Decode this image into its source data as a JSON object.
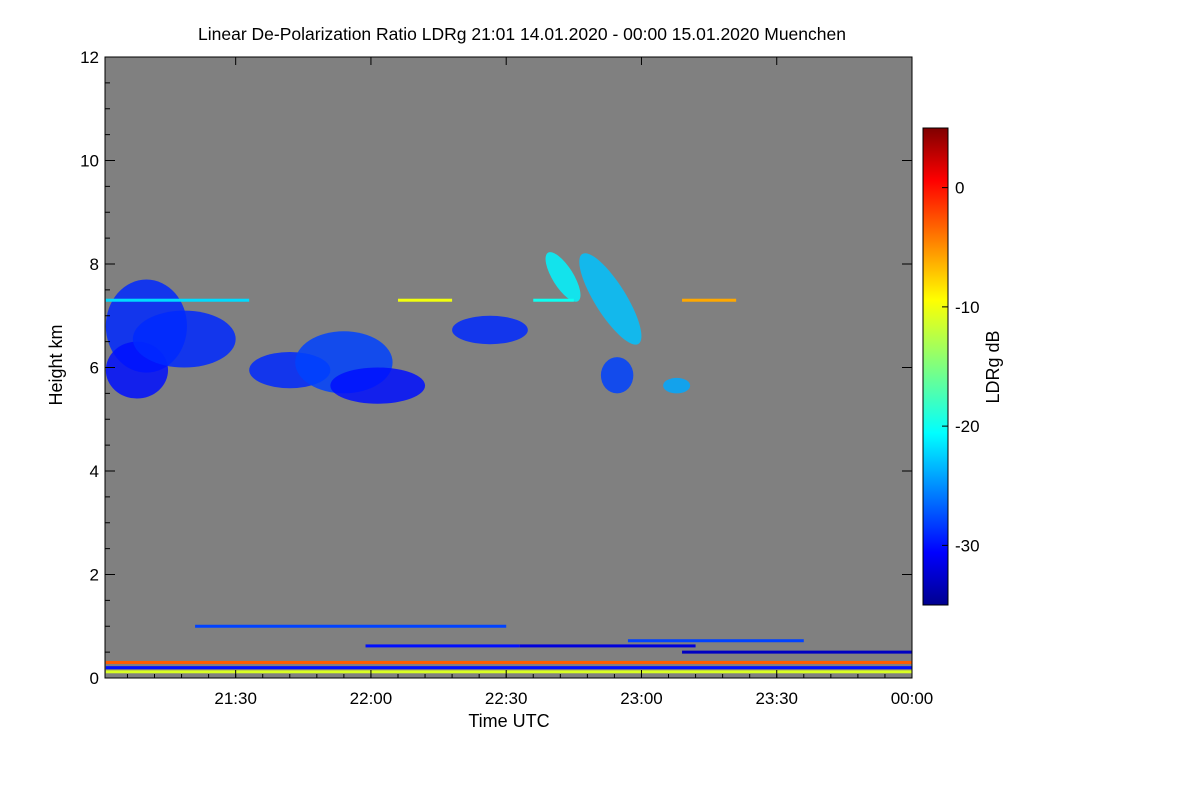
{
  "chart_data": {
    "type": "heatmap",
    "title": "Linear De-Polarization Ratio LDRg   21:01 14.01.2020 - 00:00 15.01.2020 Muenchen",
    "xlabel": "Time UTC",
    "ylabel": "Height km",
    "colorbar_label": "LDRg dB",
    "background_color": "#808080",
    "xlim_hours": [
      21.017,
      24.0
    ],
    "ylim_km": [
      0,
      12
    ],
    "x_ticks": [
      {
        "label": "21:30",
        "hours": 21.5
      },
      {
        "label": "22:00",
        "hours": 22.0
      },
      {
        "label": "22:30",
        "hours": 22.5
      },
      {
        "label": "23:00",
        "hours": 23.0
      },
      {
        "label": "23:30",
        "hours": 23.5
      },
      {
        "label": "00:00",
        "hours": 24.0
      }
    ],
    "y_ticks": [
      {
        "label": "0",
        "value": 0
      },
      {
        "label": "2",
        "value": 2
      },
      {
        "label": "4",
        "value": 4
      },
      {
        "label": "6",
        "value": 6
      },
      {
        "label": "8",
        "value": 8
      },
      {
        "label": "10",
        "value": 10
      },
      {
        "label": "12",
        "value": 12
      }
    ],
    "colorbar_range_db": [
      -35,
      5
    ],
    "colorbar_ticks": [
      {
        "label": "0",
        "value": 0
      },
      {
        "label": "-10",
        "value": -10
      },
      {
        "label": "-20",
        "value": -20
      },
      {
        "label": "-30",
        "value": -30
      }
    ],
    "colormap_stops": [
      {
        "v": 0.0,
        "c": "#00008f"
      },
      {
        "v": 0.11,
        "c": "#0000ff"
      },
      {
        "v": 0.36,
        "c": "#00ffff"
      },
      {
        "v": 0.5,
        "c": "#7fff7f"
      },
      {
        "v": 0.64,
        "c": "#ffff00"
      },
      {
        "v": 0.89,
        "c": "#ff0000"
      },
      {
        "v": 1.0,
        "c": "#800000"
      }
    ],
    "cloud_features": [
      {
        "name": "cirrus-a1",
        "t0": 21.02,
        "t1": 21.32,
        "h_base": 5.9,
        "h_top": 7.7,
        "ldr": -29
      },
      {
        "name": "cirrus-a2",
        "t0": 21.02,
        "t1": 21.25,
        "h_base": 5.4,
        "h_top": 6.5,
        "ldr": -30
      },
      {
        "name": "cirrus-a3",
        "t0": 21.12,
        "t1": 21.5,
        "h_base": 6.0,
        "h_top": 7.1,
        "ldr": -29
      },
      {
        "name": "cirrus-b1",
        "t0": 21.55,
        "t1": 21.85,
        "h_base": 5.6,
        "h_top": 6.3,
        "ldr": -29
      },
      {
        "name": "cirrus-b2",
        "t0": 21.72,
        "t1": 22.08,
        "h_base": 5.5,
        "h_top": 6.7,
        "ldr": -28
      },
      {
        "name": "cirrus-b3",
        "t0": 21.85,
        "t1": 22.2,
        "h_base": 5.3,
        "h_top": 6.0,
        "ldr": -30
      },
      {
        "name": "cirrus-c1",
        "t0": 22.3,
        "t1": 22.58,
        "h_base": 6.45,
        "h_top": 7.0,
        "ldr": -29
      },
      {
        "name": "fallstreak-d1",
        "t0": 22.72,
        "t1": 23.05,
        "h_base": 6.3,
        "h_top": 8.35,
        "ldr": -23
      },
      {
        "name": "fallstreak-d2",
        "t0": 22.6,
        "t1": 22.82,
        "h_base": 7.2,
        "h_top": 8.3,
        "ldr": -21
      },
      {
        "name": "cirrus-e1",
        "t0": 22.85,
        "t1": 22.97,
        "h_base": 5.5,
        "h_top": 6.2,
        "ldr": -28
      },
      {
        "name": "cirrus-e2",
        "t0": 23.08,
        "t1": 23.18,
        "h_base": 5.5,
        "h_top": 5.8,
        "ldr": -24
      }
    ],
    "layer_lines": [
      {
        "name": "layer-7.3km-a",
        "t0": 21.02,
        "t1": 21.55,
        "h": 7.3,
        "ldr": -22
      },
      {
        "name": "layer-7.3km-b",
        "t0": 22.1,
        "t1": 22.3,
        "h": 7.3,
        "ldr": -10
      },
      {
        "name": "layer-7.3km-c",
        "t0": 22.6,
        "t1": 22.75,
        "h": 7.3,
        "ldr": -20
      },
      {
        "name": "layer-7.3km-d",
        "t0": 23.15,
        "t1": 23.35,
        "h": 7.3,
        "ldr": -6
      },
      {
        "name": "layer-1.0km",
        "t0": 21.35,
        "t1": 22.5,
        "h": 1.0,
        "ldr": -28
      },
      {
        "name": "layer-0.6km-a",
        "t0": 21.98,
        "t1": 22.55,
        "h": 0.62,
        "ldr": -30
      },
      {
        "name": "layer-0.6km-b",
        "t0": 22.55,
        "t1": 23.2,
        "h": 0.62,
        "ldr": -32
      },
      {
        "name": "layer-0.6km-c",
        "t0": 23.15,
        "t1": 24.0,
        "h": 0.5,
        "ldr": -33
      },
      {
        "name": "layer-0.72km",
        "t0": 22.95,
        "t1": 23.6,
        "h": 0.72,
        "ldr": -28
      },
      {
        "name": "surface-0.3km",
        "t0": 21.02,
        "t1": 24.0,
        "h": 0.3,
        "ldr": -3
      },
      {
        "name": "surface-0.2km",
        "t0": 21.02,
        "t1": 24.0,
        "h": 0.2,
        "ldr": -30
      },
      {
        "name": "surface-0.1km",
        "t0": 21.02,
        "t1": 24.0,
        "h": 0.12,
        "ldr": -11
      }
    ]
  }
}
